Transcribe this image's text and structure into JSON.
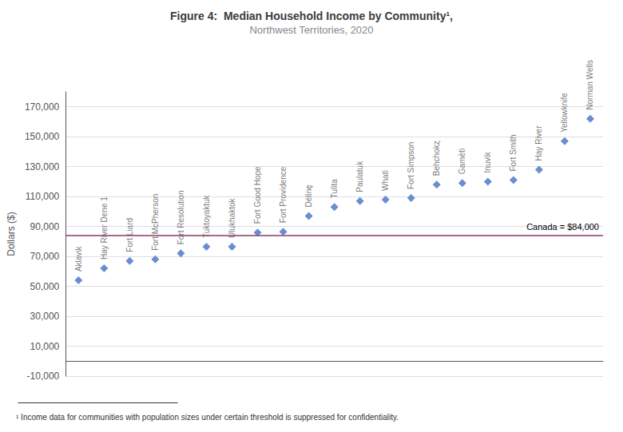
{
  "chart_data": {
    "type": "scatter",
    "title": "Figure 4:  Median Household Income by Community¹,",
    "subtitle": "Northwest Territories, 2020",
    "ylabel": "Dollars ($)",
    "footnote": "¹ Income data for communities with population sizes under certain threshold is suppressed for confidentiality.",
    "categories": [
      "Aklavik",
      "Hay River Dene 1",
      "Fort Liard",
      "Fort McPherson",
      "Fort Resolution",
      "Tuktoyaktuk",
      "Ulukhaktok",
      "Fort Good Hope",
      "Fort Providence",
      "Délinȩ",
      "Tulita",
      "Paulatuk",
      "Whatì",
      "Fort Simpson",
      "Behchokȥ",
      "Gamètì",
      "Inuvik",
      "Fort Smith",
      "Hay River",
      "Yellowknife",
      "Norman Wells"
    ],
    "values": [
      54000,
      62000,
      67000,
      68000,
      72000,
      76500,
      76500,
      86000,
      86500,
      97000,
      103000,
      107000,
      108000,
      109000,
      118000,
      119000,
      120000,
      121000,
      128000,
      147000,
      162000
    ],
    "color": "#4472C4",
    "marker": "diamond",
    "reference_lines": [
      {
        "value": 84000,
        "label": "Canada = $84,000",
        "color": "#8B3A6B"
      }
    ],
    "ylim": [
      -10000,
      180000
    ],
    "yticks": [
      {
        "value": -10000,
        "label": "-10,000"
      },
      {
        "value": 10000,
        "label": "10,000"
      },
      {
        "value": 30000,
        "label": "30,000"
      },
      {
        "value": 50000,
        "label": "50,000"
      },
      {
        "value": 70000,
        "label": "70,000"
      },
      {
        "value": 90000,
        "label": "90,000"
      },
      {
        "value": 110000,
        "label": "110,000"
      },
      {
        "value": 130000,
        "label": "130,000"
      },
      {
        "value": 150000,
        "label": "150,000"
      },
      {
        "value": 170000,
        "label": "170,000"
      }
    ],
    "grid": true,
    "tick_labels": "y"
  }
}
